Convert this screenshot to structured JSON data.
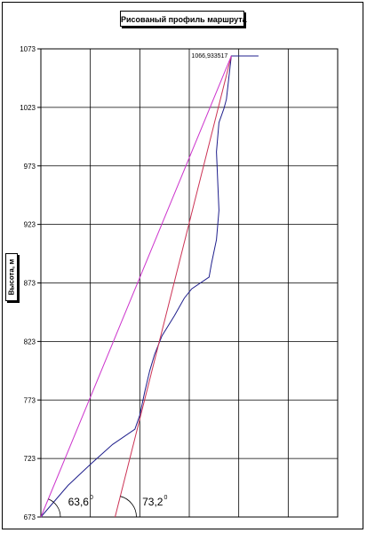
{
  "chart_data": {
    "type": "line",
    "title": "Рисованый профиль маршрута",
    "xlabel": "",
    "ylabel": "Высота, м",
    "ylim": [
      673,
      1073
    ],
    "xlim": [
      0,
      6
    ],
    "y_ticks": [
      673,
      723,
      773,
      823,
      873,
      923,
      973,
      1023,
      1073
    ],
    "grid": true,
    "legend": "none",
    "series": [
      {
        "color": "#1f1f8c",
        "points": [
          [
            0.0,
            673
          ],
          [
            0.55,
            700
          ],
          [
            1.0,
            718
          ],
          [
            1.45,
            735
          ],
          [
            1.9,
            748
          ],
          [
            2.0,
            760
          ],
          [
            2.1,
            780
          ],
          [
            2.2,
            798
          ],
          [
            2.3,
            812
          ],
          [
            2.45,
            828
          ],
          [
            2.7,
            845
          ],
          [
            2.9,
            860
          ],
          [
            3.05,
            868
          ],
          [
            3.4,
            878
          ],
          [
            3.45,
            890
          ],
          [
            3.55,
            910
          ],
          [
            3.6,
            935
          ],
          [
            3.55,
            985
          ],
          [
            3.6,
            1010
          ],
          [
            3.7,
            1022
          ],
          [
            3.75,
            1030
          ],
          [
            3.85,
            1066.93
          ],
          [
            4.4,
            1066.93
          ]
        ]
      },
      {
        "color": "#cc3355",
        "points": [
          [
            1.5,
            673
          ],
          [
            3.85,
            1066.93
          ]
        ]
      },
      {
        "color": "#cc33cc",
        "points": [
          [
            0.0,
            673
          ],
          [
            3.85,
            1066.93
          ]
        ]
      }
    ],
    "data_labels": [
      {
        "x": 3.85,
        "y": 1066.93,
        "text": "1066,933517"
      }
    ],
    "annotations": [
      {
        "text": "63,6",
        "superscript": "0",
        "x": 0.55,
        "y": 683
      },
      {
        "text": "73,2",
        "superscript": "0",
        "x": 2.05,
        "y": 683
      }
    ]
  }
}
